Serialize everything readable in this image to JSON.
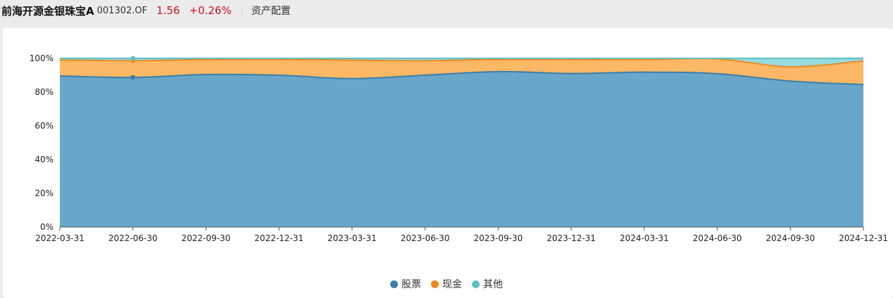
{
  "header": {
    "fund_name": "前海开源金银珠宝A",
    "fund_code": "001302.OF",
    "price": "1.56",
    "change": "+0.26%",
    "tab": "资产配置"
  },
  "colors": {
    "stock_fill": "#68a6ca",
    "stock_line": "#3a7fa8",
    "cash_fill": "#fdb45d",
    "cash_line": "#ee8a22",
    "other_fill": "#8fd9dc",
    "other_line": "#5fc1c4",
    "price_up": "#d0111b"
  },
  "chart_data": {
    "type": "area",
    "stacked": true,
    "categories": [
      "2022-03-31",
      "2022-06-30",
      "2022-09-30",
      "2022-12-31",
      "2023-03-31",
      "2023-06-30",
      "2023-09-30",
      "2023-12-31",
      "2024-03-31",
      "2024-06-30",
      "2024-09-30",
      "2024-12-31"
    ],
    "y_tick_labels": [
      "0%",
      "20%",
      "40%",
      "60%",
      "80%",
      "100%"
    ],
    "ylim": [
      0,
      100
    ],
    "grid": false,
    "legend_position": "bottom",
    "series": [
      {
        "name": "股票",
        "values": [
          89.6,
          88.7,
          90.4,
          90.0,
          88.0,
          90.0,
          92.1,
          91.0,
          91.8,
          90.9,
          86.5,
          84.5
        ]
      },
      {
        "name": "现金",
        "values": [
          9.4,
          9.9,
          8.8,
          9.3,
          10.9,
          8.6,
          7.2,
          8.3,
          7.4,
          8.7,
          8.5,
          14.0
        ]
      },
      {
        "name": "其他",
        "values": [
          1.0,
          1.4,
          0.8,
          0.7,
          1.1,
          1.4,
          0.7,
          0.7,
          0.8,
          0.4,
          5.0,
          1.5
        ]
      }
    ]
  }
}
